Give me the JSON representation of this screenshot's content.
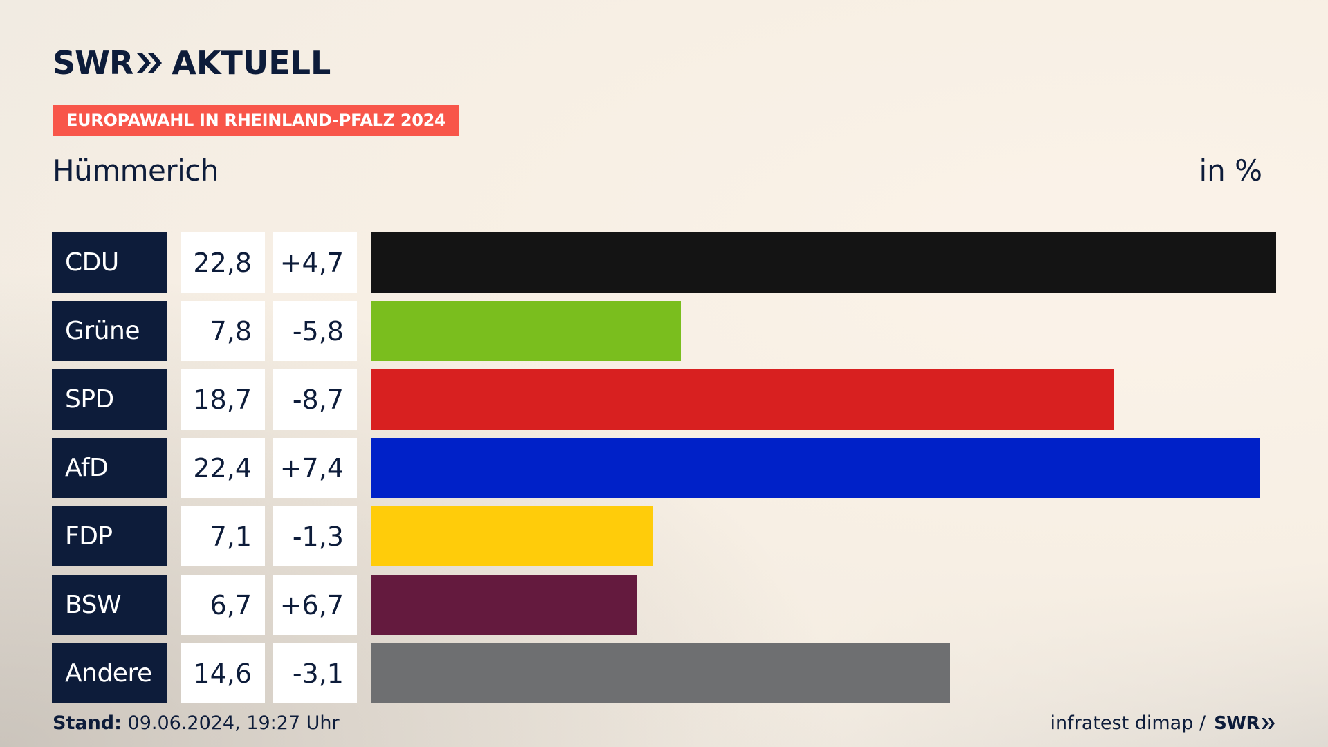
{
  "logo": {
    "brand": "SWR",
    "product": "AKTUELL"
  },
  "tag": "EUROPAWAHL IN RHEINLAND-PFALZ 2024",
  "region": "Hümmerich",
  "unit": "in %",
  "colors": {
    "navy": "#0d1c3a",
    "tag_red": "#f8564a"
  },
  "chart_data": {
    "type": "bar",
    "orientation": "horizontal",
    "categories": [
      "CDU",
      "Grüne",
      "SPD",
      "AfD",
      "FDP",
      "BSW",
      "Andere"
    ],
    "values": [
      22.8,
      7.8,
      18.7,
      22.4,
      7.1,
      6.7,
      14.6
    ],
    "values_label": [
      "22,8",
      "7,8",
      "18,7",
      "22,4",
      "7,1",
      "6,7",
      "14,6"
    ],
    "changes": [
      4.7,
      -5.8,
      -8.7,
      7.4,
      -1.3,
      6.7,
      -3.1
    ],
    "changes_label": [
      "+4,7",
      "-5,8",
      "-8,7",
      "+7,4",
      "-1,3",
      "+6,7",
      "-3,1"
    ],
    "colors": [
      "#141414",
      "#7abe1e",
      "#d82020",
      "#0021c8",
      "#ffcc0a",
      "#641a3e",
      "#6e6f71"
    ],
    "xlim": [
      0,
      22.8
    ]
  },
  "footer": {
    "stand_label": "Stand:",
    "stand_value": "09.06.2024, 19:27 Uhr",
    "source": "infratest dimap /",
    "source_brand": "SWR"
  }
}
